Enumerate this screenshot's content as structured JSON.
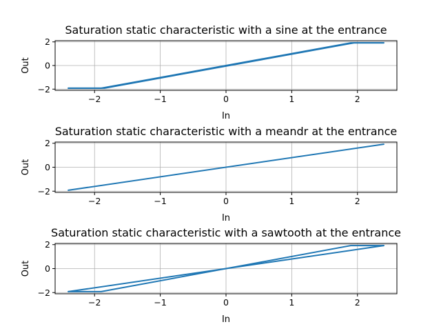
{
  "chart_data": [
    {
      "type": "line",
      "title": "Saturation static characteristic with a sine at the entrance",
      "xlabel": "In",
      "ylabel": "Out",
      "xlim": [
        -2.6,
        2.6
      ],
      "ylim": [
        -2.1,
        2.1
      ],
      "xticks": [
        -2,
        -1,
        0,
        1,
        2
      ],
      "yticks": [
        -2,
        0,
        2
      ],
      "grid": true,
      "series": [
        {
          "x": [
            -2.4,
            -1.9,
            1.9,
            2.4
          ],
          "y": [
            -1.92,
            -1.92,
            1.92,
            1.92
          ]
        },
        {
          "x": [
            -2.4,
            -1.85,
            1.95,
            2.4
          ],
          "y": [
            -1.92,
            -1.92,
            1.92,
            1.92
          ]
        }
      ]
    },
    {
      "type": "line",
      "title": "Saturation static characteristic with a meandr at the entrance",
      "xlabel": "In",
      "ylabel": "Out",
      "xlim": [
        -2.6,
        2.6
      ],
      "ylim": [
        -2.1,
        2.1
      ],
      "xticks": [
        -2,
        -1,
        0,
        1,
        2
      ],
      "yticks": [
        -2,
        0,
        2
      ],
      "grid": true,
      "series": [
        {
          "x": [
            -2.4,
            2.4
          ],
          "y": [
            -1.92,
            1.92
          ]
        }
      ]
    },
    {
      "type": "line",
      "title": "Saturation static characteristic with a sawtooth at the entrance",
      "xlabel": "In",
      "ylabel": "Out",
      "xlim": [
        -2.6,
        2.6
      ],
      "ylim": [
        -2.1,
        2.1
      ],
      "xticks": [
        -2,
        -1,
        0,
        1,
        2
      ],
      "yticks": [
        -2,
        0,
        2
      ],
      "grid": true,
      "series": [
        {
          "x": [
            -2.4,
            -1.9,
            1.9,
            2.4
          ],
          "y": [
            -1.92,
            -1.92,
            1.92,
            1.92
          ]
        },
        {
          "x": [
            2.4,
            -2.4
          ],
          "y": [
            1.92,
            -1.92
          ]
        }
      ]
    }
  ],
  "colors": {
    "line": "#1f77b4",
    "grid": "#b0b0b0"
  }
}
